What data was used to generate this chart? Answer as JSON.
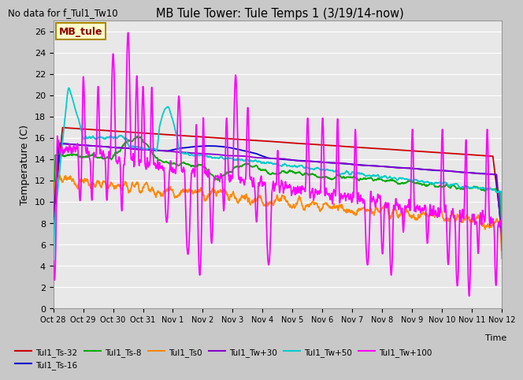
{
  "title": "MB Tule Tower: Tule Temps 1 (3/19/14-now)",
  "subtitle": "No data for f_Tul1_Tw10",
  "ylabel": "Temperature (C)",
  "xlabel": "Time",
  "ylim": [
    0,
    27
  ],
  "yticks": [
    0,
    2,
    4,
    6,
    8,
    10,
    12,
    14,
    16,
    18,
    20,
    22,
    24,
    26
  ],
  "xtick_labels": [
    "Oct 28",
    "Oct 29",
    "Oct 30",
    "Oct 31",
    "Nov 1",
    "Nov 2",
    "Nov 3",
    "Nov 4",
    "Nov 5",
    "Nov 6",
    "Nov 7",
    "Nov 8",
    "Nov 9",
    "Nov 10",
    "Nov 11",
    "Nov 12"
  ],
  "series": {
    "Tul1_Ts-32": {
      "color": "#cc0000",
      "lw": 1.3
    },
    "Tul1_Ts-16": {
      "color": "#0000cc",
      "lw": 1.3
    },
    "Tul1_Ts-8": {
      "color": "#00aa00",
      "lw": 1.3
    },
    "Tul1_Ts0": {
      "color": "#ff8800",
      "lw": 1.3
    },
    "Tul1_Tw+30": {
      "color": "#8800cc",
      "lw": 1.3
    },
    "Tul1_Tw+50": {
      "color": "#00cccc",
      "lw": 1.3
    },
    "Tul1_Tw+100": {
      "color": "#ff00ff",
      "lw": 1.3
    }
  },
  "annotation": {
    "text": "MB_tule",
    "bg": "#ffffcc",
    "border": "#aa8800"
  },
  "grid_color": "#ffffff",
  "fig_bg": "#c8c8c8",
  "plot_bg": "#e8e8e8"
}
